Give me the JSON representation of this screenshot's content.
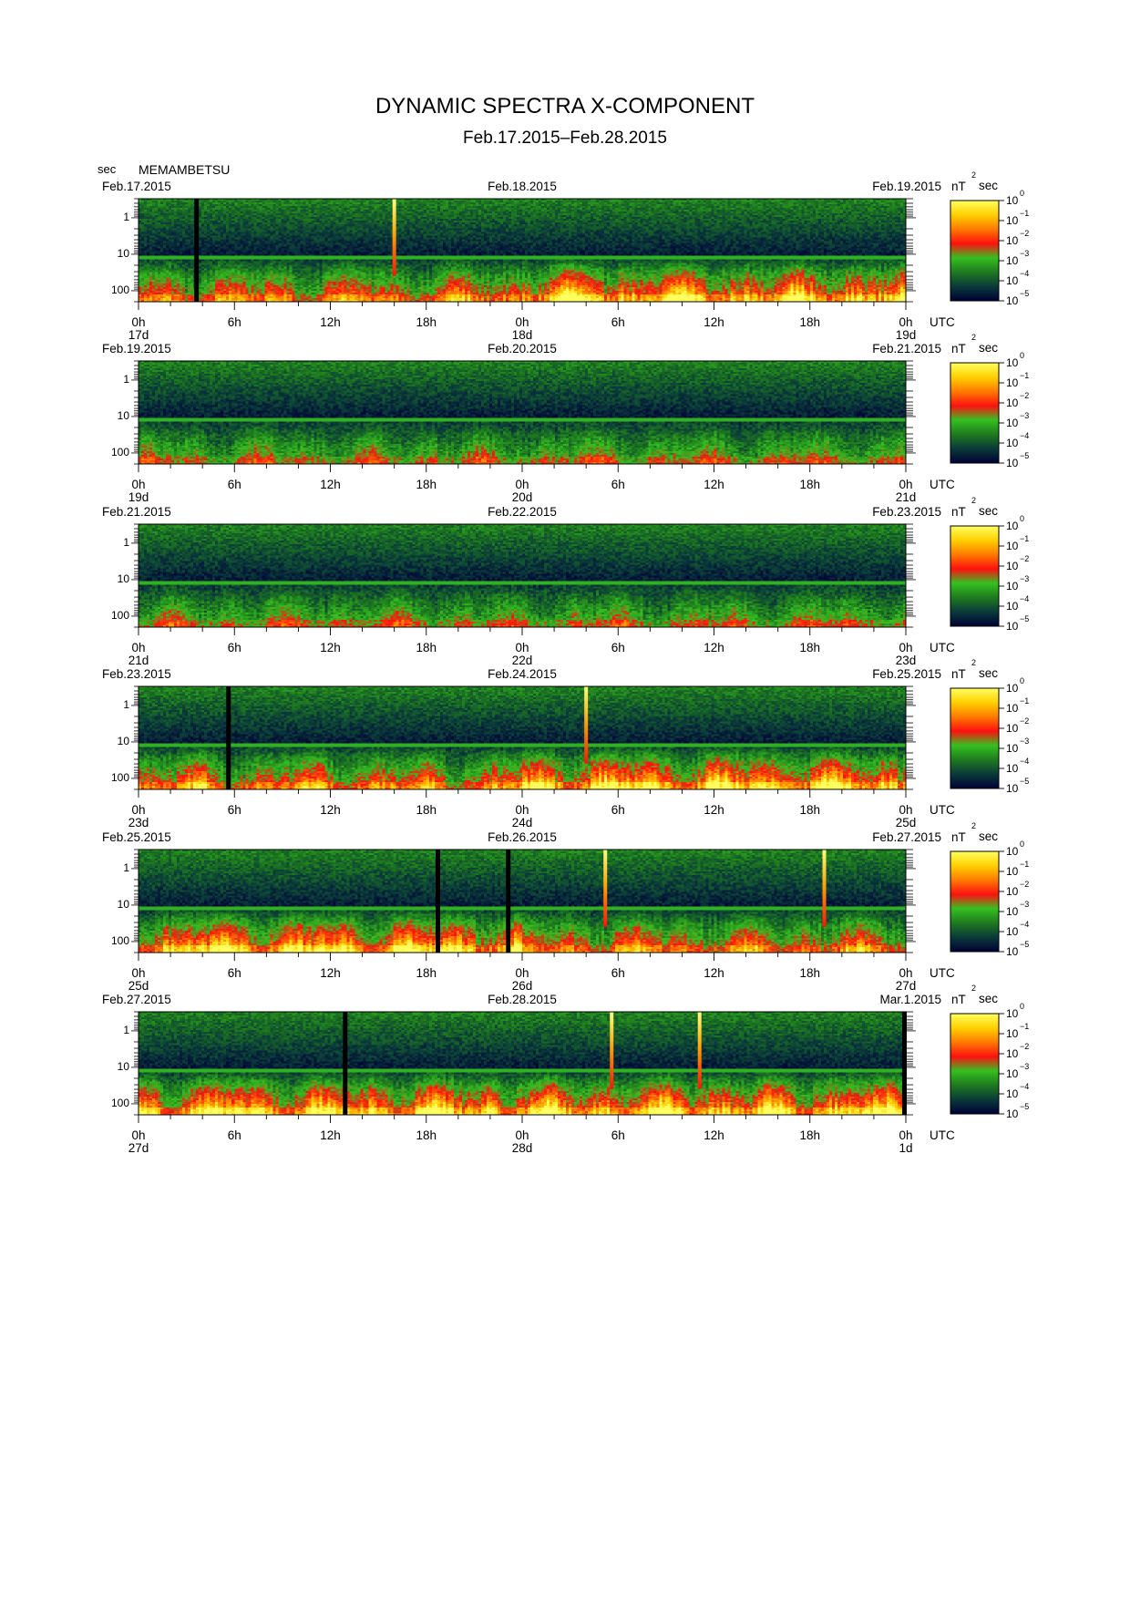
{
  "title": "DYNAMIC SPECTRA X-COMPONENT",
  "subtitle": "Feb.17.2015–Feb.28.2015",
  "y_unit": "sec",
  "station": "MEMAMBETSU",
  "time_zone_label": "UTC",
  "colorbar_unit": {
    "base": "nT",
    "exponent": "2",
    "suffix": "sec"
  },
  "colors": {
    "scale": [
      "#000035",
      "#0a3a3a",
      "#1e7a1e",
      "#35c020",
      "#ff1010",
      "#ff7a00",
      "#ffd000",
      "#ffff60"
    ],
    "background": "#ffffff"
  },
  "chart_data": [
    {
      "type": "heatmap",
      "panel": 1,
      "date_left": "Feb.17.2015",
      "date_center": "Feb.18.2015",
      "date_right": "Feb.19.2015",
      "x_ticks": [
        "0h",
        "6h",
        "12h",
        "18h",
        "0h",
        "6h",
        "12h",
        "18h",
        "0h"
      ],
      "day_labels": [
        "17d",
        "18d",
        "19d"
      ],
      "y_ticks": [
        "1",
        "10",
        "100"
      ],
      "ylabel": "sec",
      "y_scale": "log",
      "ylim": [
        0.3,
        200
      ],
      "x_range_hours": [
        0,
        48
      ],
      "colorbar": {
        "labels": [
          "10",
          "10",
          "10",
          "10",
          "10",
          "10"
        ],
        "exponents": [
          "0",
          "−1",
          "−2",
          "−3",
          "−4",
          "−5"
        ],
        "range_log10": [
          -5,
          0
        ]
      },
      "data_gaps_hours": [
        3.6
      ],
      "impulsive_events_hours": [
        16.0
      ],
      "activity": {
        "day1_low_freq": "moderate",
        "day2_low_freq": "strong"
      }
    },
    {
      "type": "heatmap",
      "panel": 2,
      "date_left": "Feb.19.2015",
      "date_center": "Feb.20.2015",
      "date_right": "Feb.21.2015",
      "x_ticks": [
        "0h",
        "6h",
        "12h",
        "18h",
        "0h",
        "6h",
        "12h",
        "18h",
        "0h"
      ],
      "day_labels": [
        "19d",
        "20d",
        "21d"
      ],
      "y_ticks": [
        "1",
        "10",
        "100"
      ],
      "ylabel": "sec",
      "y_scale": "log",
      "ylim": [
        0.3,
        200
      ],
      "x_range_hours": [
        0,
        48
      ],
      "colorbar": {
        "labels": [
          "10",
          "10",
          "10",
          "10",
          "10",
          "10"
        ],
        "exponents": [
          "0",
          "−1",
          "−2",
          "−3",
          "−4",
          "−5"
        ],
        "range_log10": [
          -5,
          0
        ]
      },
      "data_gaps_hours": [],
      "impulsive_events_hours": [],
      "activity": {
        "day1_low_freq": "weak",
        "day2_low_freq": "weak"
      }
    },
    {
      "type": "heatmap",
      "panel": 3,
      "date_left": "Feb.21.2015",
      "date_center": "Feb.22.2015",
      "date_right": "Feb.23.2015",
      "x_ticks": [
        "0h",
        "6h",
        "12h",
        "18h",
        "0h",
        "6h",
        "12h",
        "18h",
        "0h"
      ],
      "day_labels": [
        "21d",
        "22d",
        "23d"
      ],
      "y_ticks": [
        "1",
        "10",
        "100"
      ],
      "ylabel": "sec",
      "y_scale": "log",
      "ylim": [
        0.3,
        200
      ],
      "x_range_hours": [
        0,
        48
      ],
      "colorbar": {
        "labels": [
          "10",
          "10",
          "10",
          "10",
          "10",
          "10"
        ],
        "exponents": [
          "0",
          "−1",
          "−2",
          "−3",
          "−4",
          "−5"
        ],
        "range_log10": [
          -5,
          0
        ]
      },
      "data_gaps_hours": [],
      "impulsive_events_hours": [],
      "activity": {
        "day1_low_freq": "weak",
        "day2_low_freq": "weak"
      }
    },
    {
      "type": "heatmap",
      "panel": 4,
      "date_left": "Feb.23.2015",
      "date_center": "Feb.24.2015",
      "date_right": "Feb.25.2015",
      "x_ticks": [
        "0h",
        "6h",
        "12h",
        "18h",
        "0h",
        "6h",
        "12h",
        "18h",
        "0h"
      ],
      "day_labels": [
        "23d",
        "24d",
        "25d"
      ],
      "y_ticks": [
        "1",
        "10",
        "100"
      ],
      "ylabel": "sec",
      "y_scale": "log",
      "ylim": [
        0.3,
        200
      ],
      "x_range_hours": [
        0,
        48
      ],
      "colorbar": {
        "labels": [
          "10",
          "10",
          "10",
          "10",
          "10",
          "10"
        ],
        "exponents": [
          "0",
          "−1",
          "−2",
          "−3",
          "−4",
          "−5"
        ],
        "range_log10": [
          -5,
          0
        ]
      },
      "data_gaps_hours": [
        5.6
      ],
      "impulsive_events_hours": [
        28.0
      ],
      "activity": {
        "day1_low_freq": "moderate",
        "day2_low_freq": "strong"
      }
    },
    {
      "type": "heatmap",
      "panel": 5,
      "date_left": "Feb.25.2015",
      "date_center": "Feb.26.2015",
      "date_right": "Feb.27.2015",
      "x_ticks": [
        "0h",
        "6h",
        "12h",
        "18h",
        "0h",
        "6h",
        "12h",
        "18h",
        "0h"
      ],
      "day_labels": [
        "25d",
        "26d",
        "27d"
      ],
      "y_ticks": [
        "1",
        "10",
        "100"
      ],
      "ylabel": "sec",
      "y_scale": "log",
      "ylim": [
        0.3,
        200
      ],
      "x_range_hours": [
        0,
        48
      ],
      "colorbar": {
        "labels": [
          "10",
          "10",
          "10",
          "10",
          "10",
          "10"
        ],
        "exponents": [
          "0",
          "−1",
          "−2",
          "−3",
          "−4",
          "−5"
        ],
        "range_log10": [
          -5,
          0
        ]
      },
      "data_gaps_hours": [
        18.7,
        23.1
      ],
      "impulsive_events_hours": [
        29.2,
        42.9
      ],
      "activity": {
        "day1_low_freq": "strong",
        "day2_low_freq": "moderate"
      }
    },
    {
      "type": "heatmap",
      "panel": 6,
      "date_left": "Feb.27.2015",
      "date_center": "Feb.28.2015",
      "date_right": "Mar.1.2015",
      "x_ticks": [
        "0h",
        "6h",
        "12h",
        "18h",
        "0h",
        "6h",
        "12h",
        "18h",
        "0h"
      ],
      "day_labels": [
        "27d",
        "28d",
        "1d"
      ],
      "y_ticks": [
        "1",
        "10",
        "100"
      ],
      "ylabel": "sec",
      "y_scale": "log",
      "ylim": [
        0.3,
        200
      ],
      "x_range_hours": [
        0,
        48
      ],
      "colorbar": {
        "labels": [
          "10",
          "10",
          "10",
          "10",
          "10",
          "10"
        ],
        "exponents": [
          "0",
          "−1",
          "−2",
          "−3",
          "−4",
          "−5"
        ],
        "range_log10": [
          -5,
          0
        ]
      },
      "data_gaps_hours": [
        12.9,
        48.0
      ],
      "impulsive_events_hours": [
        29.6,
        35.1
      ],
      "activity": {
        "day1_low_freq": "strong",
        "day2_low_freq": "strong"
      }
    }
  ]
}
